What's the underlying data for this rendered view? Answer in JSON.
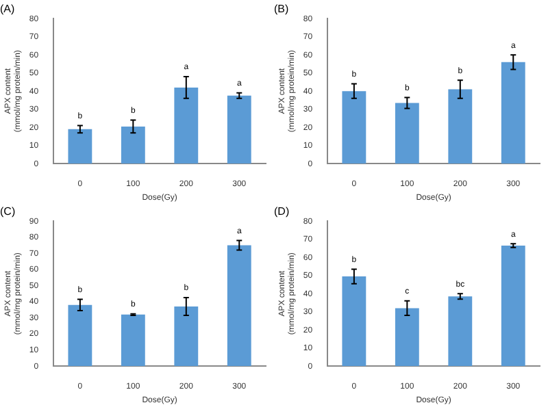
{
  "chart_data": [
    {
      "type": "bar",
      "title": "(A)",
      "xlabel": "Dose(Gy)",
      "ylabel": "APX content\n(mmol/mg protein/min)",
      "categories": [
        "0",
        "100",
        "200",
        "300"
      ],
      "values": [
        19,
        20.5,
        42,
        37.5
      ],
      "errors": [
        2,
        3.5,
        6,
        1.5
      ],
      "color": "#5b9bd5",
      "ylim": [
        0,
        80
      ],
      "yticks": [
        0,
        10,
        20,
        30,
        40,
        50,
        60,
        70,
        80
      ],
      "grid": false,
      "annotations": [
        {
          "text": "b",
          "x": "0",
          "y": 19
        },
        {
          "text": "b",
          "x": "100",
          "y": 20.5
        },
        {
          "text": "a",
          "x": "200",
          "y": 42
        },
        {
          "text": "a",
          "x": "300",
          "y": 37.5
        }
      ]
    },
    {
      "type": "bar",
      "title": "(B)",
      "xlabel": "Dose(Gy)",
      "ylabel": "APX content\n(mmol/mg protein/min)",
      "categories": [
        "0",
        "100",
        "200",
        "300"
      ],
      "values": [
        40,
        33.5,
        41,
        56
      ],
      "errors": [
        4,
        3,
        5,
        4
      ],
      "color": "#5b9bd5",
      "ylim": [
        0,
        80
      ],
      "yticks": [
        0,
        10,
        20,
        30,
        40,
        50,
        60,
        70,
        80
      ],
      "grid": false,
      "annotations": [
        {
          "text": "b",
          "x": "0",
          "y": 40
        },
        {
          "text": "b",
          "x": "100",
          "y": 33.5
        },
        {
          "text": "b",
          "x": "200",
          "y": 41
        },
        {
          "text": "a",
          "x": "300",
          "y": 56
        }
      ]
    },
    {
      "type": "bar",
      "title": "(C)",
      "xlabel": "Dose(Gy)",
      "ylabel": "APX content\n(mmol/mg protein/min)",
      "categories": [
        "0",
        "100",
        "200",
        "300"
      ],
      "values": [
        38,
        32,
        37,
        75
      ],
      "errors": [
        3.5,
        0.5,
        5.5,
        3
      ],
      "color": "#5b9bd5",
      "ylim": [
        0,
        90
      ],
      "yticks": [
        0,
        10,
        20,
        30,
        40,
        50,
        60,
        70,
        80,
        90
      ],
      "grid": false,
      "annotations": [
        {
          "text": "b",
          "x": "0",
          "y": 38
        },
        {
          "text": "b",
          "x": "100",
          "y": 32
        },
        {
          "text": "b",
          "x": "200",
          "y": 37
        },
        {
          "text": "a",
          "x": "300",
          "y": 75
        }
      ]
    },
    {
      "type": "bar",
      "title": "(D)",
      "xlabel": "Dose(Gy)",
      "ylabel": "APX content\n(mmol/mg protein/min)",
      "categories": [
        "0",
        "100",
        "200",
        "300"
      ],
      "values": [
        49.5,
        32,
        38.5,
        66.5
      ],
      "errors": [
        4,
        4,
        1.5,
        1
      ],
      "color": "#5b9bd5",
      "ylim": [
        0,
        80
      ],
      "yticks": [
        0,
        10,
        20,
        30,
        40,
        50,
        60,
        70,
        80
      ],
      "grid": false,
      "annotations": [
        {
          "text": "b",
          "x": "0",
          "y": 49.5
        },
        {
          "text": "c",
          "x": "100",
          "y": 32
        },
        {
          "text": "bc",
          "x": "200",
          "y": 38.5
        },
        {
          "text": "a",
          "x": "300",
          "y": 66.5
        }
      ]
    }
  ]
}
